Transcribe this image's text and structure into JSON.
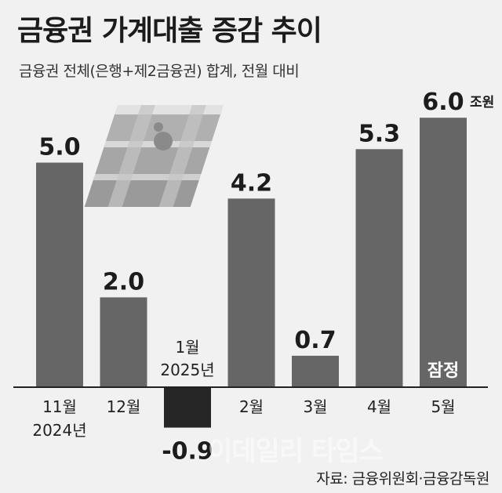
{
  "header": {
    "title": "금융권 가계대출 증감 추이",
    "subtitle": "금융권 전체(은행+제2금융권) 합계, 전월 대비"
  },
  "source": "자료: 금융위원회·금융감독원",
  "watermark": "이데일리 타임스",
  "chart_data": {
    "type": "bar",
    "categories": [
      "11월",
      "12월",
      "1월",
      "2월",
      "3월",
      "4월",
      "5월"
    ],
    "year_labels": [
      "2024년",
      "",
      "2025년",
      "",
      "",
      "",
      ""
    ],
    "values": [
      5.0,
      2.0,
      -0.9,
      4.2,
      0.7,
      5.3,
      6.0
    ],
    "value_labels": [
      "5.0",
      "2.0",
      "-0.9",
      "4.2",
      "0.7",
      "5.3",
      "6.0"
    ],
    "unit": "조원",
    "annotations": [
      {
        "category": "5월",
        "text": "잠정"
      }
    ],
    "title": "금융권 가계대출 증감 추이",
    "xlabel": "",
    "ylabel": "",
    "ylim": [
      -1.2,
      6.3
    ],
    "grid": false,
    "colors": {
      "bar": "#666666",
      "negative_bar": "#262626",
      "axis": "#222222"
    }
  }
}
